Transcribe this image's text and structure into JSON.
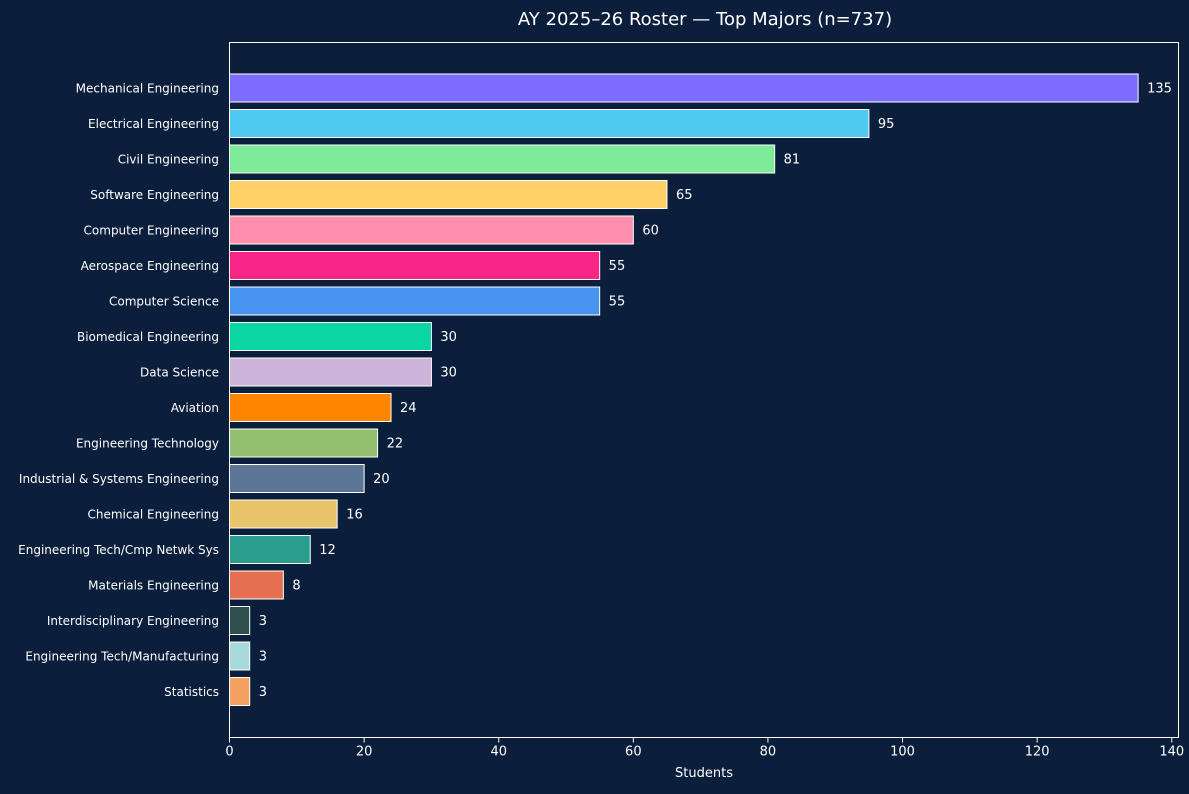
{
  "chart_data": {
    "type": "bar",
    "orientation": "horizontal",
    "title": "AY 2025–26 Roster — Top Majors (n=737)",
    "xlabel": "Students",
    "ylabel": "",
    "xlim": [
      0,
      141
    ],
    "xticks": [
      0,
      20,
      40,
      60,
      80,
      100,
      120,
      140
    ],
    "grid": false,
    "legend": "none",
    "categories": [
      "Mechanical Engineering",
      "Electrical Engineering",
      "Civil Engineering",
      "Software Engineering",
      "Computer Engineering",
      "Aerospace Engineering",
      "Computer Science",
      "Biomedical Engineering",
      "Data Science",
      "Aviation",
      "Engineering Technology",
      "Industrial & Systems Engineering",
      "Chemical Engineering",
      "Engineering Tech/Cmp Netwk Sys",
      "Materials Engineering",
      "Interdisciplinary Engineering",
      "Engineering Tech/Manufacturing",
      "Statistics"
    ],
    "values": [
      135,
      95,
      81,
      65,
      60,
      55,
      55,
      30,
      30,
      24,
      22,
      20,
      16,
      12,
      8,
      3,
      3,
      3
    ],
    "colors": [
      "#7b6cff",
      "#4fc8f2",
      "#7deb97",
      "#ffd166",
      "#ff8fab",
      "#f72585",
      "#4895ef",
      "#0bd6a3",
      "#cdb4db",
      "#ff8500",
      "#94bf6e",
      "#5a7694",
      "#e9c46a",
      "#2a9d8f",
      "#e76f51",
      "#2f4f4f",
      "#a8dadc",
      "#f4a261"
    ]
  },
  "theme": {
    "background": "#0b1e3b",
    "foreground": "#ffffff",
    "bar_edge": "#ffffff"
  }
}
